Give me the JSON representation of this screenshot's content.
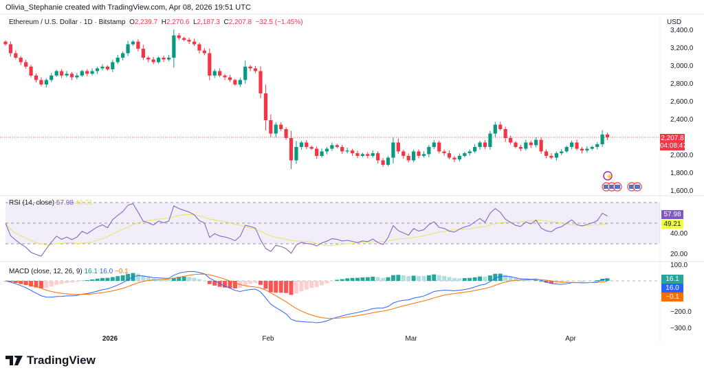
{
  "credit": "Olivia_Stephanie created with TradingView.com, Apr 08, 2026 19:51 UTC",
  "legend": {
    "symbol": "Ethereum / U.S. Dollar · 1D · Bitstamp",
    "o_label": "O",
    "o": "2,239.7",
    "h_label": "H",
    "h": "2,270.6",
    "l_label": "L",
    "l": "2,187.3",
    "c_label": "C",
    "c": "2,207.8",
    "change": "−32.5 (−1.45%)"
  },
  "currency": "USD",
  "price_tag": {
    "price": "2,207.8",
    "countdown": "04:08:47"
  },
  "rsi": {
    "title": "RSI (14, close)",
    "value": "57.98",
    "ma": "49.21",
    "axis": [
      "40.00",
      "20.00"
    ]
  },
  "macd": {
    "title": "MACD (close, 12, 26, 9)",
    "hist": "16.1",
    "macd": "16.0",
    "signal": "−0.1",
    "axis": [
      "100.0",
      "−200.0",
      "−300.0"
    ]
  },
  "logo": "TradingView",
  "colors": {
    "up": "#089981",
    "down": "#f23645",
    "rsi": "#7e57c2",
    "rsi_ma": "#e6e65a",
    "macd": "#2962ff",
    "signal": "#ff6d00"
  },
  "icons": [
    "lightning-event-icon",
    "us-flag-event-icon"
  ],
  "chart_data": {
    "type": "candlestick",
    "interval": "1D",
    "x_tick_labels": [
      "2026",
      "Feb",
      "Mar",
      "Apr"
    ],
    "y_tick_labels": [
      "3,400.0",
      "3,200.0",
      "3,000.0",
      "2,800.0",
      "2,600.0",
      "2,400.0",
      "2,000.0",
      "1,800.0",
      "1,600.0"
    ],
    "ylim": [
      1600,
      3400
    ],
    "closes": [
      3250,
      3150,
      3100,
      3050,
      3000,
      2900,
      2850,
      2800,
      2850,
      2900,
      2950,
      2900,
      2920,
      2880,
      2900,
      2950,
      2920,
      2950,
      2980,
      3000,
      2970,
      3050,
      3100,
      3150,
      3250,
      3280,
      3200,
      3100,
      3080,
      3050,
      3100,
      3080,
      3100,
      3350,
      3320,
      3300,
      3280,
      3250,
      3180,
      3150,
      2900,
      2950,
      2900,
      2880,
      2850,
      2800,
      2850,
      3000,
      2980,
      2950,
      2700,
      2400,
      2250,
      2350,
      2300,
      2200,
      1950,
      2100,
      2150,
      2100,
      2080,
      2000,
      2050,
      2080,
      2120,
      2100,
      2050,
      2060,
      2030,
      2000,
      2020,
      2000,
      2030,
      1950,
      1900,
      1980,
      2150,
      2050,
      2000,
      1950,
      2050,
      2000,
      2020,
      2100,
      2150,
      2050,
      2030,
      1980,
      1960,
      2000,
      2030,
      2050,
      2100,
      2150,
      2100,
      2250,
      2350,
      2300,
      2200,
      2150,
      2100,
      2080,
      2150,
      2120,
      2180,
      2050,
      2000,
      1980,
      2030,
      2050,
      2100,
      2150,
      2080,
      2060,
      2080,
      2100,
      2130,
      2239.7,
      2207.8
    ]
  }
}
